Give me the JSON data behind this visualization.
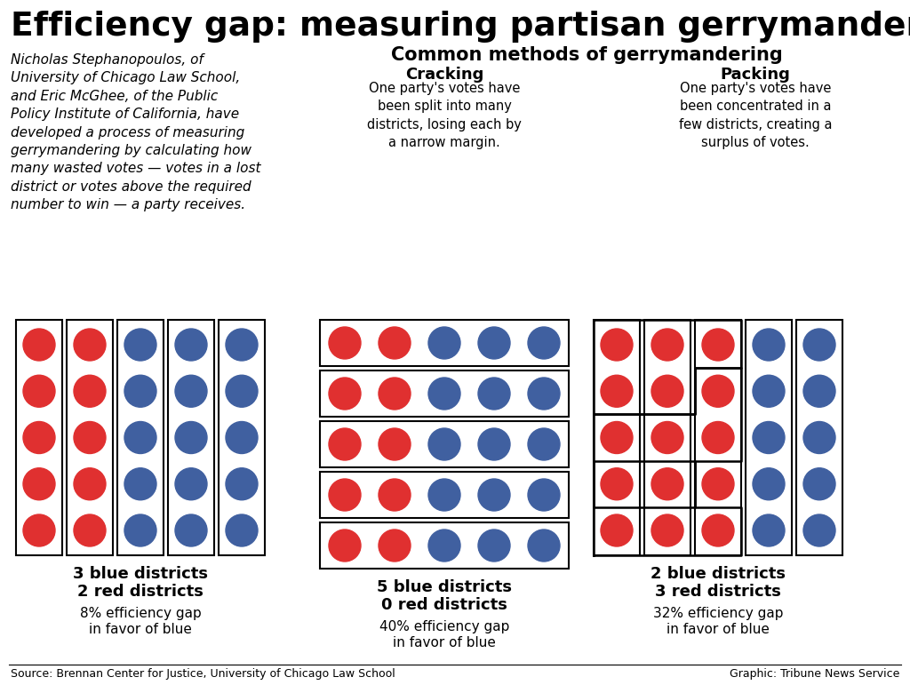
{
  "title": "Efficiency gap: measuring partisan gerrymandering",
  "subtitle_lines": [
    "Nicholas Stephanopoulos, of",
    "University of Chicago Law School,",
    "and Eric McGhee, of the Public",
    "Policy Institute of California, have",
    "developed a process of measuring",
    "gerrymandering by calculating how",
    "many wasted votes — votes in a lost",
    "district or votes above the required",
    "number to win — a party receives."
  ],
  "common_methods_title": "Common methods of gerrymandering",
  "cracking_title": "Cracking",
  "cracking_body": "One party's votes have\nbeen split into many\ndistricts, losing each by\na narrow margin.",
  "packing_title": "Packing",
  "packing_body": "One party's votes have\nbeen concentrated in a\nfew districts, creating a\nsurplus of votes.",
  "p1_label1": "3 blue districts",
  "p1_label2": "2 red districts",
  "p1_label3": "8% efficiency gap",
  "p1_label4": "in favor of blue",
  "p2_label1": "5 blue districts",
  "p2_label2": "0 red districts",
  "p2_label3": "40% efficiency gap",
  "p2_label4": "in favor of blue",
  "p3_label1": "2 blue districts",
  "p3_label2": "3 red districts",
  "p3_label3": "32% efficiency gap",
  "p3_label4": "in favor of blue",
  "source": "Source: Brennan Center for Justice, University of Chicago Law School",
  "graphic_credit": "Graphic: Tribune News Service",
  "red_color": "#E03030",
  "blue_color": "#4060A0",
  "bg_color": "#FFFFFF",
  "text_color": "#000000"
}
